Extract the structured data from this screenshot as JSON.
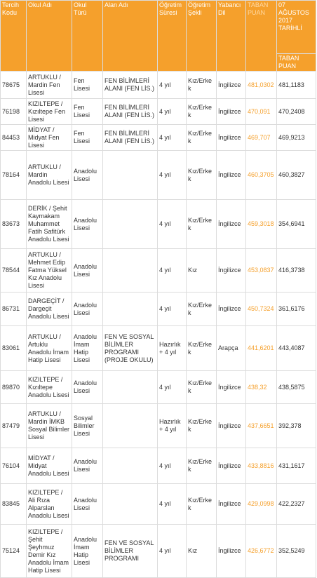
{
  "headers": {
    "tercih": "Tercih Kodu",
    "okul_adi": "Okul Adı",
    "okul_turu": "Okul Türü",
    "alan_adi": "Alan Adı",
    "ogretim_suresi": "Öğretim Süresi",
    "ogretim_sekli": "Öğretim Şekli",
    "yabanci_dil": "Yabancı Dil",
    "taban_puan": "TABAN PUAN",
    "date_header": "07 AĞUSTOS 2017 TARİHLİ",
    "date_sub": "TABAN PUAN"
  },
  "rows": [
    {
      "kod": "78675",
      "okul": "ARTUKLU / Mardin Fen Lisesi",
      "tur": "Fen Lisesi",
      "alan": "FEN BİLİMLERİ ALANI (FEN LİS.)",
      "sure": "4 yıl",
      "sekil": "Kız/Erkek",
      "dil": "İngilizce",
      "puan": "481,0302",
      "puan2": "481,1183"
    },
    {
      "kod": "76198",
      "okul": "KIZILTEPE / Kızıltepe Fen Lisesi",
      "tur": "Fen Lisesi",
      "alan": "FEN BİLİMLERİ ALANI (FEN LİS.)",
      "sure": "4 yıl",
      "sekil": "Kız/Erkek",
      "dil": "İngilizce",
      "puan": "470,091",
      "puan2": "470,2408"
    },
    {
      "kod": "84453",
      "okul": "MİDYAT / Midyat Fen Lisesi",
      "tur": "Fen Lisesi",
      "alan": "FEN BİLİMLERİ ALANI (FEN LİS.)",
      "sure": "4 yıl",
      "sekil": "Kız/Erkek",
      "dil": "İngilizce",
      "puan": "469,707",
      "puan2": "469,9213"
    },
    {
      "kod": "78164",
      "okul": "ARTUKLU / Mardin Anadolu Lisesi",
      "tur": "Anadolu Lisesi",
      "alan": "",
      "sure": "4 yıl",
      "sekil": "Kız/Erkek",
      "dil": "İngilizce",
      "puan": "460,3705",
      "puan2": "460,3827"
    },
    {
      "kod": "83673",
      "okul": "DERİK / Şehit Kaymakam Muhammet Fatih Safitürk Anadolu Lisesi",
      "tur": "Anadolu Lisesi",
      "alan": "",
      "sure": "4 yıl",
      "sekil": "Kız/Erkek",
      "dil": "İngilizce",
      "puan": "459,3018",
      "puan2": "354,6941"
    },
    {
      "kod": "78544",
      "okul": "ARTUKLU / Mehmet Edip Fatma Yüksel Kız Anadolu Lisesi",
      "tur": "Anadolu Lisesi",
      "alan": "",
      "sure": "4 yıl",
      "sekil": "Kız",
      "dil": "İngilizce",
      "puan": "453,0837",
      "puan2": "416,3738"
    },
    {
      "kod": "86731",
      "okul": "DARGEÇİT / Dargeçit Anadolu Lisesi",
      "tur": "Anadolu Lisesi",
      "alan": "",
      "sure": "4 yıl",
      "sekil": "Kız/Erkek",
      "dil": "İngilizce",
      "puan": "450,7324",
      "puan2": "361,6176"
    },
    {
      "kod": "83061",
      "okul": "ARTUKLU / Artuklu Anadolu İmam Hatip Lisesi",
      "tur": "Anadolu İmam Hatip Lisesi",
      "alan": "FEN VE SOSYAL BİLİMLER PROGRAMI (PROJE OKULU)",
      "sure": "Hazırlık + 4 yıl",
      "sekil": "Kız/Erkek",
      "dil": "Arapça",
      "puan": "441,6201",
      "puan2": "443,4087"
    },
    {
      "kod": "89870",
      "okul": "KIZILTEPE / Kızıltepe Anadolu Lisesi",
      "tur": "Anadolu Lisesi",
      "alan": "",
      "sure": "4 yıl",
      "sekil": "Kız/Erkek",
      "dil": "İngilizce",
      "puan": "438,32",
      "puan2": "438,5875"
    },
    {
      "kod": "87479",
      "okul": "ARTUKLU / Mardin İMKB Sosyal Bilimler Lisesi",
      "tur": "Sosyal Bilimler Lisesi",
      "alan": "",
      "sure": "Hazırlık + 4 yıl",
      "sekil": "Kız/Erkek",
      "dil": "İngilizce",
      "puan": "437,6651",
      "puan2": "392,378"
    },
    {
      "kod": "76104",
      "okul": "MİDYAT / Midyat Anadolu Lisesi",
      "tur": "Anadolu Lisesi",
      "alan": "",
      "sure": "4 yıl",
      "sekil": "Kız/Erkek",
      "dil": "İngilizce",
      "puan": "433,8816",
      "puan2": "431,1617"
    },
    {
      "kod": "83845",
      "okul": "KIZILTEPE / Ali Rıza Alparslan Anadolu Lisesi",
      "tur": "Anadolu Lisesi",
      "alan": "",
      "sure": "4 yıl",
      "sekil": "Kız/Erkek",
      "dil": "İngilizce",
      "puan": "429,0998",
      "puan2": "422,2327"
    },
    {
      "kod": "75124",
      "okul": "KIZILTEPE / Şehit Şeyhmuz Demir Kız Anadolu İmam Hatip Lisesi",
      "tur": "Anadolu İmam Hatip Lisesi",
      "alan": "FEN VE SOSYAL BİLİMLER PROGRAMI",
      "sure": "4 yıl",
      "sekil": "Kız",
      "dil": "İngilizce",
      "puan": "426,6772",
      "puan2": "352,5249"
    }
  ]
}
